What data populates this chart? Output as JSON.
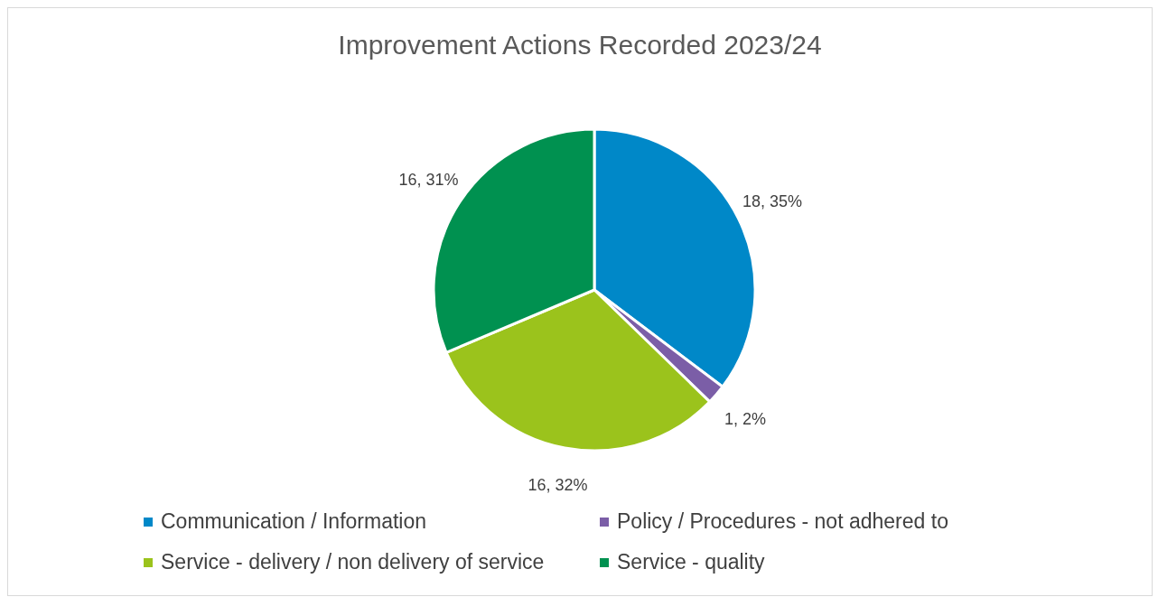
{
  "chart_data": {
    "type": "pie",
    "title": "Improvement Actions Recorded 2023/24",
    "categories": [
      "Communication / Information",
      "Policy / Procedures - not adhered to",
      "Service - delivery / non delivery of service",
      "Service - quality"
    ],
    "values": [
      18,
      1,
      16,
      16
    ],
    "colors": [
      "#0088c8",
      "#7b5ea7",
      "#9bc31c",
      "#009150"
    ],
    "value_labels": [
      "18, 35%",
      "1, 2%",
      "16, 32%",
      "16, 31%"
    ],
    "legend": "bottom"
  }
}
